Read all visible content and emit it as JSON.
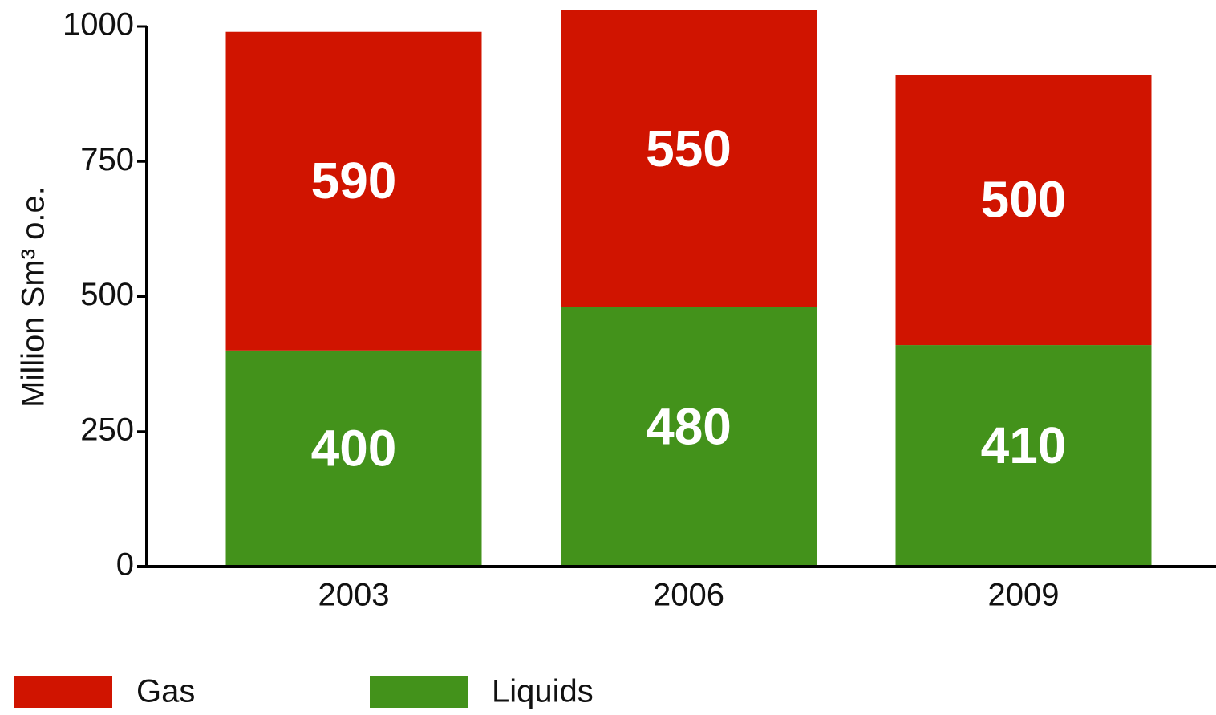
{
  "chart_data": {
    "type": "stacked_bar",
    "y_label": "Million Sm³ o.e.",
    "categories": [
      "2003",
      "2006",
      "2009"
    ],
    "series": [
      {
        "name": "Gas",
        "color": "#d01400",
        "values": [
          590,
          550,
          500
        ]
      },
      {
        "name": "Liquids",
        "color": "#43921b",
        "values": [
          400,
          480,
          410
        ]
      }
    ],
    "ylim": [
      0,
      1000
    ],
    "yticks": [
      0,
      250,
      500,
      750,
      1000
    ],
    "grid": false
  }
}
